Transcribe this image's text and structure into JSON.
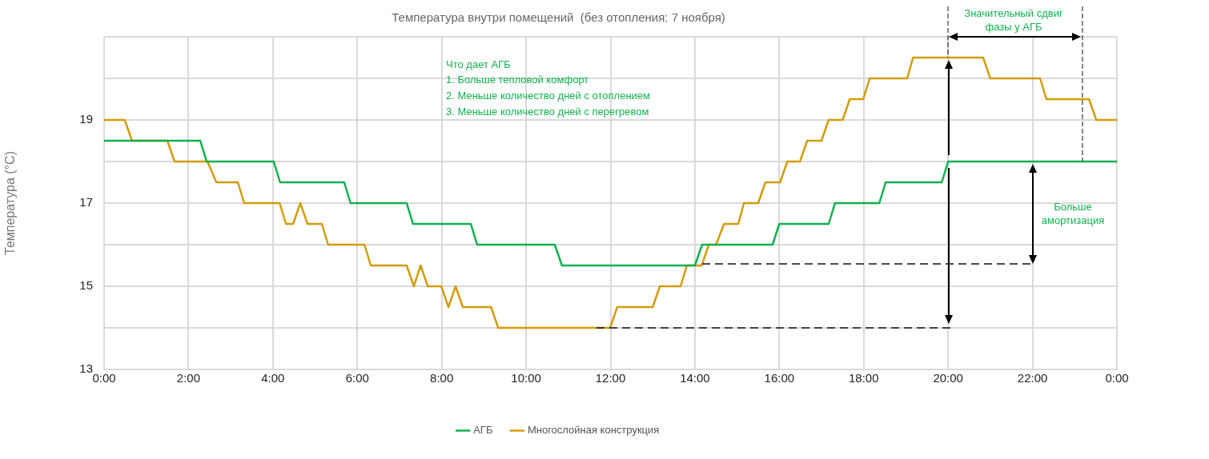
{
  "chart_data": {
    "type": "line",
    "title": "Температура внутри помещений  (без отопления: 7 ноября)",
    "ylabel": "Температура (°C)",
    "xlim": [
      0,
      24
    ],
    "xticks": [
      {
        "value": 0,
        "label": "0:00"
      },
      {
        "value": 2,
        "label": "2:00"
      },
      {
        "value": 4,
        "label": "4:00"
      },
      {
        "value": 6,
        "label": "6:00"
      },
      {
        "value": 8,
        "label": "8:00"
      },
      {
        "value": 10,
        "label": "10:00"
      },
      {
        "value": 12,
        "label": "12:00"
      },
      {
        "value": 14,
        "label": "14:00"
      },
      {
        "value": 16,
        "label": "16:00"
      },
      {
        "value": 18,
        "label": "18:00"
      },
      {
        "value": 20,
        "label": "20:00"
      },
      {
        "value": 22,
        "label": "22:00"
      },
      {
        "value": 24,
        "label": "0:00"
      }
    ],
    "ylim": [
      13,
      21
    ],
    "yticks": [
      13,
      {
        "value": 14,
        "label": null
      },
      15,
      {
        "value": 16,
        "label": null
      },
      17,
      {
        "value": 18,
        "label": null
      },
      19,
      {
        "value": 20,
        "label": null
      },
      {
        "value": 21,
        "label": null
      }
    ],
    "grid": true,
    "legend": "bottom",
    "marker": "none",
    "line_style": "solid",
    "series": [
      {
        "name": "АГБ",
        "color": "#12b04f",
        "x": [
          0,
          2.28,
          2.43,
          4.02,
          4.17,
          5.69,
          5.84,
          7.17,
          7.32,
          8.69,
          8.84,
          10.68,
          10.85,
          14.0,
          14.17,
          15.84,
          16.0,
          17.17,
          17.32,
          18.37,
          18.52,
          19.85,
          20.0,
          24
        ],
        "values": [
          18.5,
          18.5,
          18,
          18,
          17.5,
          17.5,
          17,
          17,
          16.5,
          16.5,
          16,
          16,
          15.5,
          15.5,
          16,
          16,
          16.5,
          16.5,
          17,
          17,
          17.5,
          17.5,
          18,
          18
        ]
      },
      {
        "name": "Многослойная конструкция",
        "color": "#d49b0b",
        "x": [
          0,
          0.49,
          0.66,
          1.5,
          1.67,
          2.45,
          2.66,
          3.17,
          3.32,
          4.16,
          4.31,
          4.48,
          4.65,
          4.82,
          5.16,
          5.31,
          6.17,
          6.32,
          7.17,
          7.34,
          7.5,
          7.67,
          7.99,
          8.16,
          8.33,
          8.5,
          9.17,
          9.34,
          11.99,
          12.16,
          13.0,
          13.17,
          13.66,
          13.81,
          14.16,
          14.33,
          14.5,
          14.69,
          15.03,
          15.16,
          15.5,
          15.67,
          16.02,
          16.19,
          16.49,
          16.66,
          17.0,
          17.17,
          17.5,
          17.67,
          17.99,
          18.14,
          19.03,
          19.17,
          20.83,
          21.0,
          22.18,
          22.33,
          23.34,
          23.51,
          24
        ],
        "values": [
          19,
          19,
          18.5,
          18.5,
          18,
          18,
          17.5,
          17.5,
          17,
          17,
          16.5,
          16.5,
          17,
          16.5,
          16.5,
          16,
          16,
          15.5,
          15.5,
          15,
          15.5,
          15,
          15,
          14.5,
          15,
          14.5,
          14.5,
          14,
          14,
          14.5,
          14.5,
          15,
          15,
          15.5,
          15.5,
          16,
          16,
          16.5,
          16.5,
          17,
          17,
          17.5,
          17.5,
          18,
          18,
          18.5,
          18.5,
          19,
          19,
          19.5,
          19.5,
          20,
          20,
          20.5,
          20.5,
          20,
          20,
          19.5,
          19.5,
          19,
          19
        ]
      }
    ],
    "annotations": [
      "Что дает АГБ",
      "1. Больше тепловой комфорт",
      "2. Меньше количество дней с отоплением",
      "3. Меньше количество дней с перегревом",
      "Значительный сдвиг фазы у АГБ",
      "Больше амортизация"
    ]
  }
}
